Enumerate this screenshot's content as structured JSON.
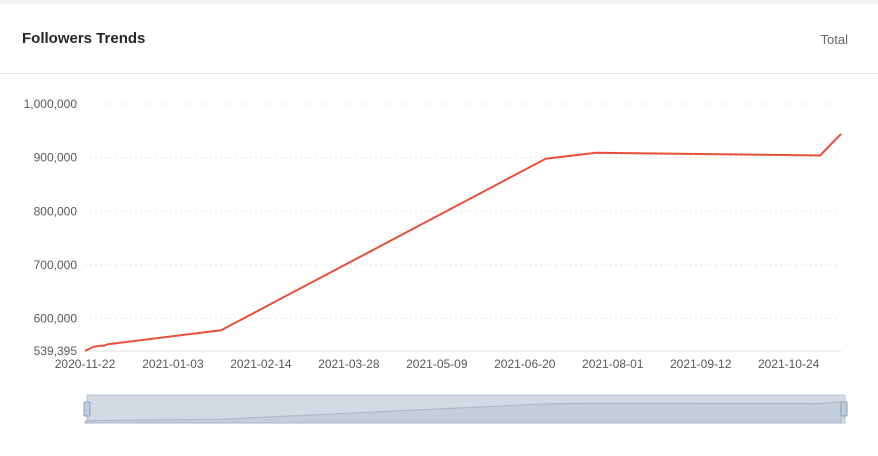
{
  "header": {
    "title": "Followers Trends",
    "filter_label": "Total"
  },
  "colors": {
    "line": "#e8503a",
    "grid": "#e8e8e8",
    "slider_fill": "#d3dae4",
    "slider_border": "#b8c4d6"
  },
  "chart_data": {
    "type": "line",
    "title": "Followers Trends",
    "x_type": "date",
    "xlim": [
      "2020-11-22",
      "2021-11-18"
    ],
    "ylim": [
      539395,
      1000000
    ],
    "y_ticks": [
      "539,395",
      "600,000",
      "700,000",
      "800,000",
      "900,000",
      "1,000,000"
    ],
    "y_tick_values": [
      539395,
      600000,
      700000,
      800000,
      900000,
      1000000
    ],
    "x_ticks": [
      "2020-11-22",
      "2021-01-03",
      "2021-02-14",
      "2021-03-28",
      "2021-05-09",
      "2021-06-20",
      "2021-08-01",
      "2021-09-12",
      "2021-10-24"
    ],
    "grid": true,
    "has_zoom_slider": true,
    "series": [
      {
        "x": [
          "2020-11-22",
          "2020-11-26",
          "2020-11-29",
          "2020-12-01",
          "2020-12-03",
          "2021-01-26",
          "2021-06-30",
          "2021-07-24",
          "2021-11-08",
          "2021-11-18"
        ],
        "y": [
          539395,
          547000,
          549000,
          549000,
          552000,
          578000,
          898000,
          909000,
          904000,
          944000
        ]
      }
    ]
  }
}
